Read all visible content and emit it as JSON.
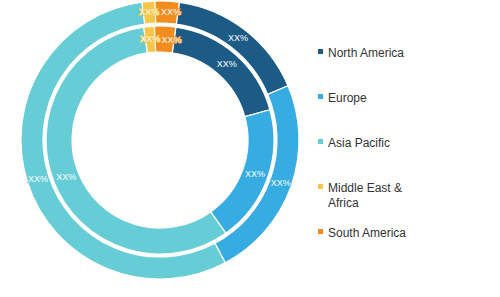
{
  "chart_data": {
    "type": "donut",
    "categories": [
      "North America",
      "Europe",
      "Asia Pacific",
      "Middle East & Africa",
      "South America"
    ],
    "colors": [
      "#1d5b87",
      "#36ace2",
      "#66cdd6",
      "#f7c548",
      "#f28c1f"
    ],
    "series": [
      {
        "values": [
          16.4,
          23.6,
          55.7,
          1.5,
          2.8
        ],
        "value_labels": [
          "XX%",
          "XX%",
          "XX%",
          "XX%",
          "XX%"
        ]
      },
      {
        "values": [
          18.5,
          19.5,
          57.5,
          1.5,
          3
        ],
        "value_labels": [
          "XX%",
          "XX%",
          "XX%",
          "XX%",
          "XX%"
        ]
      }
    ],
    "data_labels": true,
    "legend": "right"
  }
}
